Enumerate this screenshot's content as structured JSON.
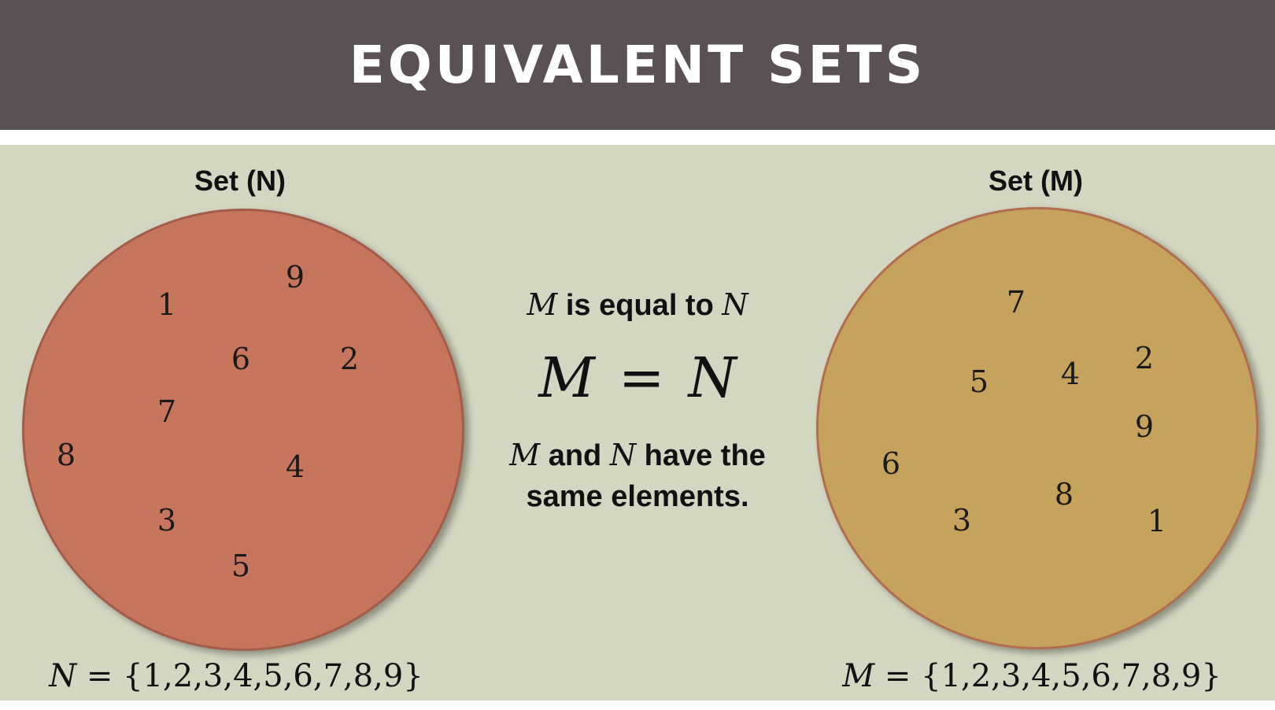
{
  "header": {
    "title": "EQUIVALENT SETS",
    "background_color": "#5a5155"
  },
  "set_n": {
    "label": "Set (N)",
    "elements": [
      "1",
      "9",
      "6",
      "2",
      "7",
      "8",
      "4",
      "3",
      "5"
    ],
    "notation_var": "N",
    "notation_rest": "= {1,2,3,4,5,6,7,8,9}",
    "fill_color": "#c8755e"
  },
  "set_m": {
    "label": "Set (M)",
    "elements": [
      "7",
      "5",
      "4",
      "2",
      "9",
      "6",
      "8",
      "3",
      "1"
    ],
    "notation_var": "M",
    "notation_rest": "= {1,2,3,4,5,6,7,8,9}",
    "fill_color": "#c6a35d"
  },
  "center": {
    "line1_var_a": "M",
    "line1_text": "is equal to",
    "line1_var_b": "N",
    "equation_left": "M",
    "equation_op": "=",
    "equation_right": "N",
    "line3_var_a": "M",
    "line3_text_a": "and",
    "line3_var_b": "N",
    "line3_text_b": "have the",
    "line4_text": "same elements."
  },
  "colors": {
    "content_background": "#d3d7c2"
  }
}
